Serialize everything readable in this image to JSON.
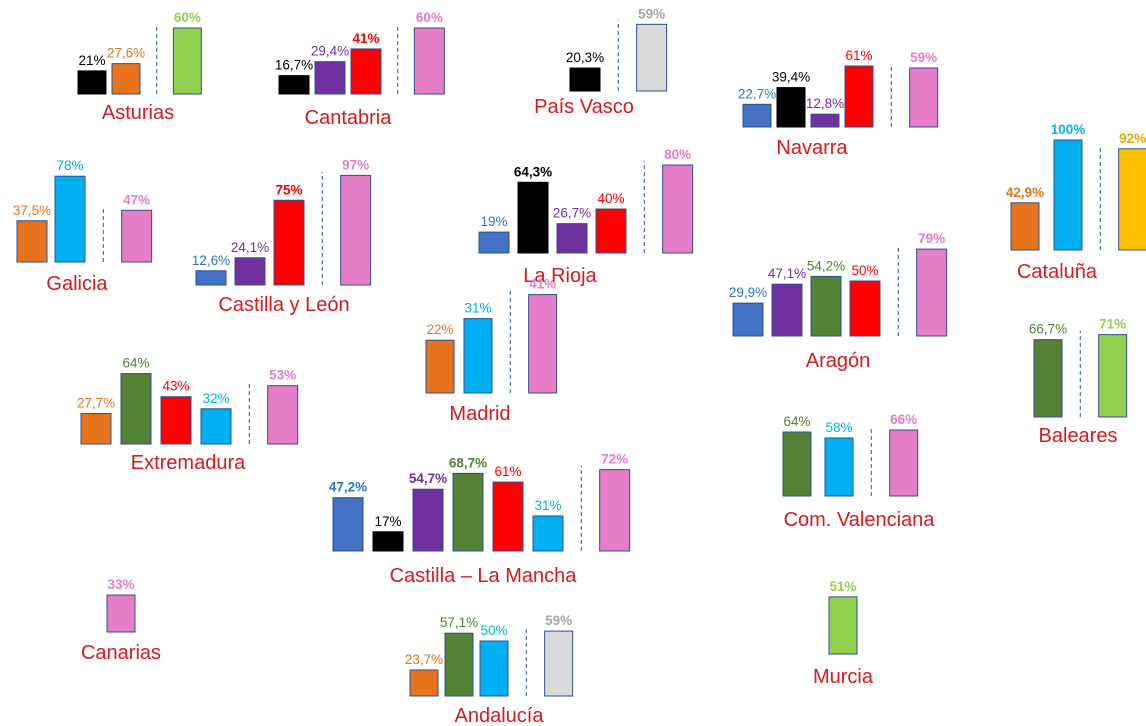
{
  "chart_data": {
    "type": "bar",
    "colors": {
      "black": "#000000",
      "orange": "#e8731d",
      "purple": "#7030a0",
      "red": "#ff0000",
      "blue": "#4472c4",
      "lightblue": "#00b0f0",
      "green": "#548235",
      "lightgreen": "#92d050",
      "pink": "#e57dc8",
      "gray": "#d9d9d9",
      "yellow": "#ffc000"
    },
    "label_colors": {
      "black": "#000000",
      "orange": "#e8731d",
      "purple": "#7030a0",
      "red": "#ff0000",
      "blue": "#2e74c9",
      "lightblue": "#00b0f0",
      "green": "#548235",
      "lightgreen": "#92d050",
      "pink": "#e57dc8",
      "gray": "#a6a6a6",
      "yellow": "#e6a800"
    },
    "regions": [
      {
        "name": "Asturias",
        "bars": [
          {
            "label": "21%",
            "value": 21,
            "color": "black"
          },
          {
            "label": "27,6%",
            "value": 27.6,
            "color": "orange"
          }
        ],
        "total": {
          "label": "60%",
          "value": 60,
          "color": "lightgreen",
          "bold": true
        }
      },
      {
        "name": "Cantabria",
        "bars": [
          {
            "label": "16,7%",
            "value": 16.7,
            "color": "black"
          },
          {
            "label": "29,4%",
            "value": 29.4,
            "color": "purple"
          },
          {
            "label": "41%",
            "value": 41,
            "color": "red",
            "bold": true
          }
        ],
        "total": {
          "label": "60%",
          "value": 60,
          "color": "pink",
          "bold": true
        }
      },
      {
        "name": "País Vasco",
        "bars": [
          {
            "label": "20,3%",
            "value": 20.3,
            "color": "black"
          }
        ],
        "total": {
          "label": "59%",
          "value": 59,
          "color": "gray",
          "bold": true
        }
      },
      {
        "name": "Navarra",
        "bars": [
          {
            "label": "22,7%",
            "value": 22.7,
            "color": "blue"
          },
          {
            "label": "39,4%",
            "value": 39.4,
            "color": "black"
          },
          {
            "label": "12,8%",
            "value": 12.8,
            "color": "purple"
          },
          {
            "label": "61%",
            "value": 61,
            "color": "red"
          }
        ],
        "total": {
          "label": "59%",
          "value": 59,
          "color": "pink",
          "bold": true
        }
      },
      {
        "name": "Galicia",
        "bars": [
          {
            "label": "37,5%",
            "value": 37.5,
            "color": "orange"
          },
          {
            "label": "78%",
            "value": 78,
            "color": "lightblue"
          }
        ],
        "total": {
          "label": "47%",
          "value": 47,
          "color": "pink",
          "bold": true
        }
      },
      {
        "name": "Castilla y León",
        "bars": [
          {
            "label": "12,6%",
            "value": 12.6,
            "color": "blue"
          },
          {
            "label": "24,1%",
            "value": 24.1,
            "color": "purple"
          },
          {
            "label": "75%",
            "value": 75,
            "color": "red",
            "bold": true
          }
        ],
        "total": {
          "label": "97%",
          "value": 97,
          "color": "pink",
          "bold": true
        }
      },
      {
        "name": "La Rioja",
        "bars": [
          {
            "label": "19%",
            "value": 19,
            "color": "blue"
          },
          {
            "label": "64,3%",
            "value": 64.3,
            "color": "black",
            "bold": true
          },
          {
            "label": "26,7%",
            "value": 26.7,
            "color": "purple"
          },
          {
            "label": "40%",
            "value": 40,
            "color": "red"
          }
        ],
        "total": {
          "label": "80%",
          "value": 80,
          "color": "pink",
          "bold": true
        }
      },
      {
        "name": "Cataluña",
        "bars": [
          {
            "label": "42,9%",
            "value": 42.9,
            "color": "orange",
            "bold": true
          },
          {
            "label": "100%",
            "value": 100,
            "color": "lightblue",
            "bold": true
          }
        ],
        "total": {
          "label": "92%",
          "value": 92,
          "color": "yellow",
          "bold": true
        }
      },
      {
        "name": "Aragón",
        "bars": [
          {
            "label": "29,9%",
            "value": 29.9,
            "color": "blue"
          },
          {
            "label": "47,1%",
            "value": 47.1,
            "color": "purple"
          },
          {
            "label": "54,2%",
            "value": 54.2,
            "color": "green"
          },
          {
            "label": "50%",
            "value": 50,
            "color": "red"
          }
        ],
        "total": {
          "label": "79%",
          "value": 79,
          "color": "pink",
          "bold": true
        }
      },
      {
        "name": "Madrid",
        "bars": [
          {
            "label": "22%",
            "value": 22,
            "color": "orange"
          },
          {
            "label": "31%",
            "value": 31,
            "color": "lightblue"
          }
        ],
        "total": {
          "label": "41%",
          "value": 41,
          "color": "pink",
          "bold": true
        }
      },
      {
        "name": "Baleares",
        "bars": [
          {
            "label": "66,7%",
            "value": 66.7,
            "color": "green"
          }
        ],
        "total": {
          "label": "71%",
          "value": 71,
          "color": "lightgreen",
          "bold": true
        }
      },
      {
        "name": "Extremadura",
        "bars": [
          {
            "label": "27,7%",
            "value": 27.7,
            "color": "orange"
          },
          {
            "label": "64%",
            "value": 64,
            "color": "green"
          },
          {
            "label": "43%",
            "value": 43,
            "color": "red"
          },
          {
            "label": "32%",
            "value": 32,
            "color": "lightblue"
          }
        ],
        "total": {
          "label": "53%",
          "value": 53,
          "color": "pink",
          "bold": true
        }
      },
      {
        "name": "Com. Valenciana",
        "bars": [
          {
            "label": "64%",
            "value": 64,
            "color": "green"
          },
          {
            "label": "58%",
            "value": 58,
            "color": "lightblue"
          }
        ],
        "total": {
          "label": "66%",
          "value": 66,
          "color": "pink",
          "bold": true
        }
      },
      {
        "name": "Castilla – La Mancha",
        "bars": [
          {
            "label": "47,2%",
            "value": 47.2,
            "color": "blue",
            "bold": true
          },
          {
            "label": "17%",
            "value": 17,
            "color": "black"
          },
          {
            "label": "54,7%",
            "value": 54.7,
            "color": "purple",
            "bold": true
          },
          {
            "label": "68,7%",
            "value": 68.7,
            "color": "green",
            "bold": true
          },
          {
            "label": "61%",
            "value": 61,
            "color": "red"
          },
          {
            "label": "31%",
            "value": 31,
            "color": "lightblue"
          }
        ],
        "total": {
          "label": "72%",
          "value": 72,
          "color": "pink",
          "bold": true
        }
      },
      {
        "name": "Canarias",
        "bars": [],
        "total": {
          "label": "33%",
          "value": 33,
          "color": "pink",
          "bold": true
        }
      },
      {
        "name": "Andalucía",
        "bars": [
          {
            "label": "23,7%",
            "value": 23.7,
            "color": "orange"
          },
          {
            "label": "57,1%",
            "value": 57.1,
            "color": "green"
          },
          {
            "label": "50%",
            "value": 50,
            "color": "lightblue"
          }
        ],
        "total": {
          "label": "59%",
          "value": 59,
          "color": "gray",
          "bold": true
        }
      },
      {
        "name": "Murcia",
        "bars": [],
        "total": {
          "label": "51%",
          "value": 51,
          "color": "lightgreen",
          "bold": true
        }
      }
    ]
  }
}
